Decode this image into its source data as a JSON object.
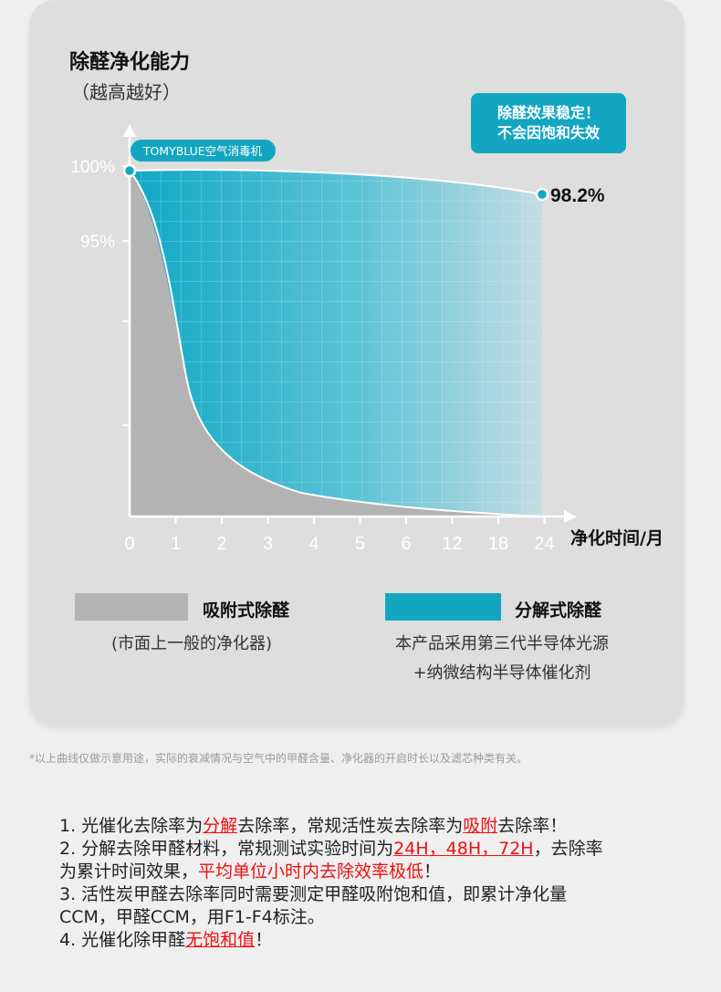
{
  "chart_data": {
    "type": "area",
    "title": "除醛净化能力",
    "subtitle": "（越高越好）",
    "xlabel": "净化时间/月",
    "x_ticks": [
      "0",
      "1",
      "2",
      "3",
      "4",
      "5",
      "6",
      "12",
      "18",
      "24"
    ],
    "y_ticks": [
      "100%",
      "95%"
    ],
    "series": [
      {
        "name": "分解式除醛",
        "color": "#13a6c1",
        "end_label": "98.2%",
        "start_tag": "TOMYBLUE空气消毒机"
      },
      {
        "name": "吸附式除醛",
        "color": "#b3b3b3"
      }
    ],
    "callout": [
      "除醛效果稳定！",
      "不会因饱和失效"
    ],
    "legend": [
      {
        "label": "吸附式除醛",
        "note": [
          "(市面上一般的净化器)"
        ]
      },
      {
        "label": "分解式除醛",
        "note": [
          "本产品采用第三代半导体光源",
          "+纳微结构半导体催化剂"
        ]
      }
    ]
  },
  "footnote": "*以上曲线仅做示意用途，实际的衰减情况与空气中的甲醛含量、净化器的开启时长以及滤芯种类有关。",
  "notes": [
    {
      "lines": [
        [
          {
            "t": "1.  光催化去除率为"
          },
          {
            "t": "分解",
            "s": "hl"
          },
          {
            "t": "去除率，常规活性炭去除率为"
          },
          {
            "t": "吸附",
            "s": "hl"
          },
          {
            "t": "去除率！"
          }
        ]
      ]
    },
    {
      "lines": [
        [
          {
            "t": "2.  分解去除甲醛材料，常规测试实验时间为"
          },
          {
            "t": "24H，48H，72H",
            "s": "hl"
          },
          {
            "t": "，去除率"
          }
        ],
        [
          {
            "t": "     为累计时间效果，"
          },
          {
            "t": "平均单位小时内去除效率极低",
            "s": "red"
          },
          {
            "t": "！"
          }
        ]
      ]
    },
    {
      "lines": [
        [
          {
            "t": "3.  活性炭甲醛去除率同时需要测定甲醛吸附饱和值，即累计净化量"
          }
        ],
        [
          {
            "t": "     CCM，甲醛CCM，用F1-F4标注。"
          }
        ]
      ]
    },
    {
      "lines": [
        [
          {
            "t": "4.  光催化除甲醛"
          },
          {
            "t": "无饱和值",
            "s": "hl"
          },
          {
            "t": "！"
          }
        ]
      ]
    }
  ]
}
